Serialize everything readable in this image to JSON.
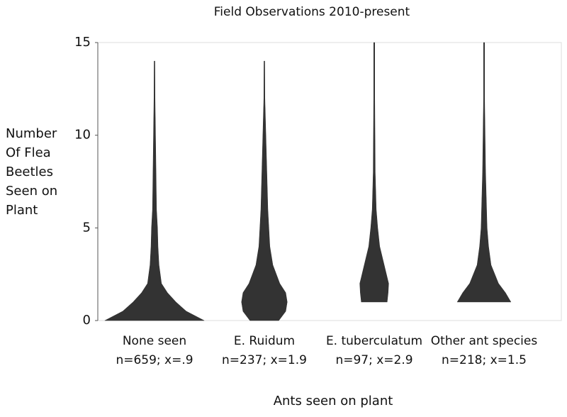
{
  "chart_data": {
    "type": "violin",
    "title": "Field Observations 2010-present",
    "xlabel": "Ants seen on plant",
    "ylabel_lines": [
      "Number",
      "Of Flea",
      "Beetles",
      "Seen on",
      "Plant"
    ],
    "categories": [
      "None seen",
      "E. Ruidum",
      "E. tuberculatum",
      "Other ant species"
    ],
    "annotations": [
      "n=659; x=.9",
      "n=237; x=1.9",
      "n=97; x=2.9",
      "n=218; x=1.5"
    ],
    "ylim": [
      0,
      15
    ],
    "yticks": [
      0,
      5,
      10,
      15
    ],
    "density_y": [
      0,
      0.5,
      1,
      1.5,
      2,
      3,
      4,
      5,
      6,
      8,
      10,
      12,
      14,
      15
    ],
    "color": "#333333",
    "series": [
      {
        "name": "None seen",
        "density": [
          1.0,
          0.64,
          0.43,
          0.26,
          0.14,
          0.09,
          0.07,
          0.06,
          0.04,
          0.03,
          0.02,
          0.01,
          0.005,
          null
        ]
      },
      {
        "name": "E. Ruidum",
        "density": [
          0.29,
          0.43,
          0.46,
          0.43,
          0.31,
          0.17,
          0.11,
          0.09,
          0.07,
          0.05,
          0.03,
          0.01,
          0.003,
          null
        ]
      },
      {
        "name": "E. tuberculatum",
        "density": [
          null,
          null,
          0.26,
          0.28,
          0.29,
          0.2,
          0.11,
          0.07,
          0.04,
          0.02,
          0.015,
          0.01,
          0.01,
          0.01
        ]
      },
      {
        "name": "Other ant species",
        "density": [
          null,
          null,
          0.54,
          0.43,
          0.29,
          0.14,
          0.09,
          0.06,
          0.05,
          0.03,
          0.02,
          0.01,
          0.01,
          0.01
        ]
      }
    ]
  }
}
